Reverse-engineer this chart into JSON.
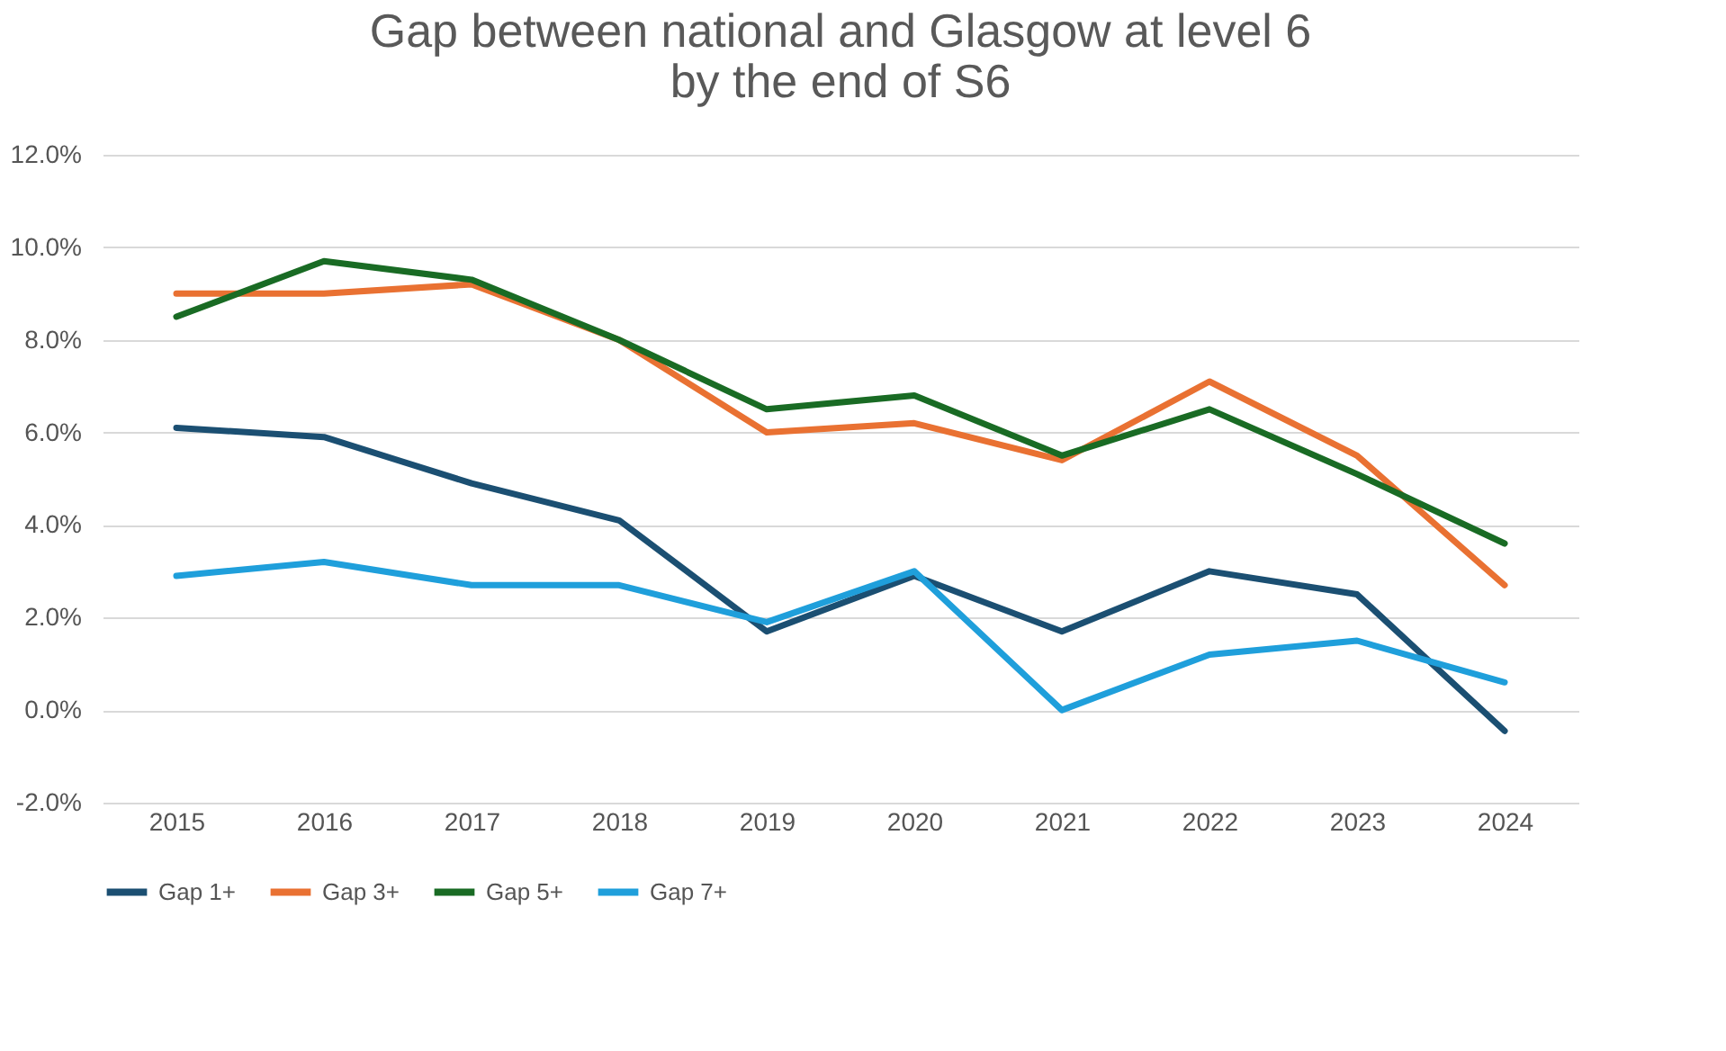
{
  "chart_data": {
    "type": "line",
    "title": "Gap between national and Glasgow at level 6\nby the end of S6",
    "categories": [
      "2015",
      "2016",
      "2017",
      "2018",
      "2019",
      "2020",
      "2021",
      "2022",
      "2023",
      "2024"
    ],
    "series": [
      {
        "name": "Gap 1+",
        "color": "#1b4f72",
        "values": [
          6.1,
          5.9,
          4.9,
          4.1,
          1.7,
          2.9,
          1.7,
          3.0,
          2.5,
          -0.45
        ]
      },
      {
        "name": "Gap 3+",
        "color": "#e97132",
        "values": [
          9.0,
          9.0,
          9.2,
          8.0,
          6.0,
          6.2,
          5.4,
          7.1,
          5.5,
          2.7
        ]
      },
      {
        "name": "Gap 5+",
        "color": "#196b24",
        "values": [
          8.5,
          9.7,
          9.3,
          8.0,
          6.5,
          6.8,
          5.5,
          6.5,
          5.1,
          3.6
        ]
      },
      {
        "name": "Gap 7+",
        "color": "#1f9fdb",
        "values": [
          2.9,
          3.2,
          2.7,
          2.7,
          1.9,
          3.0,
          0.0,
          1.2,
          1.5,
          0.6
        ]
      }
    ],
    "ylim": [
      -2,
      12
    ],
    "yticks": [
      {
        "value": -2,
        "label": "-2.0%"
      },
      {
        "value": 0,
        "label": "0.0%"
      },
      {
        "value": 2,
        "label": "2.0%"
      },
      {
        "value": 4,
        "label": "4.0%"
      },
      {
        "value": 6,
        "label": "6.0%"
      },
      {
        "value": 8,
        "label": "8.0%"
      },
      {
        "value": 10,
        "label": "10.0%"
      },
      {
        "value": 12,
        "label": "12.0%"
      }
    ],
    "grid": "y",
    "legend": "bottom",
    "marker": "none",
    "line_style": "solid"
  }
}
